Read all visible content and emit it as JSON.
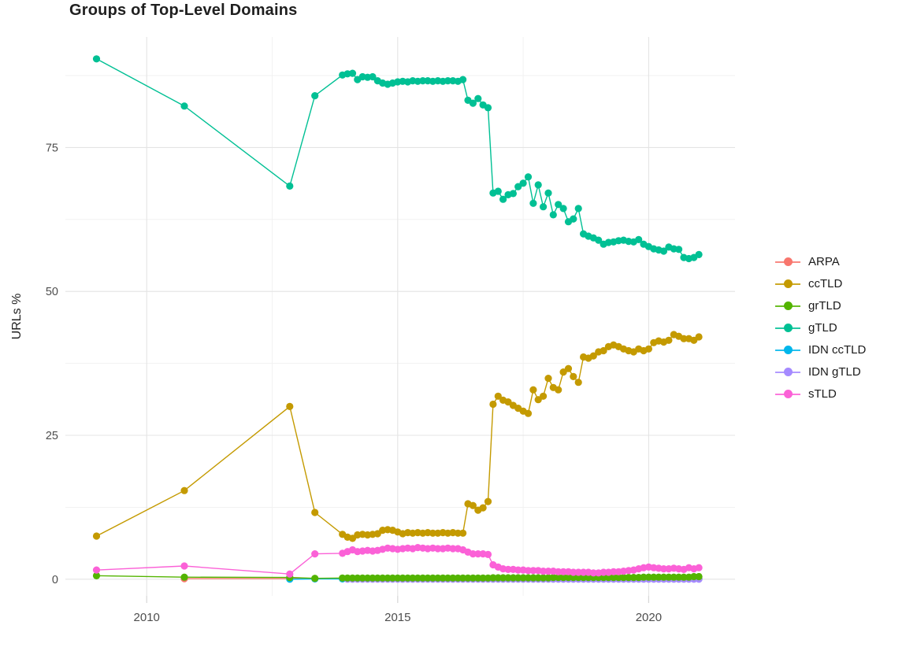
{
  "chart_data": {
    "type": "line",
    "marker": "circle",
    "title": "Groups of Top-Level Domains",
    "xlabel": "",
    "ylabel": "URLs %",
    "grid": true,
    "legend_position": "right",
    "xlim": [
      2008.38,
      2021.72
    ],
    "ylim": [
      -2.9,
      94.2
    ],
    "x_ticks": [
      2010,
      2015,
      2020
    ],
    "x_tick_labels": [
      "2010",
      "2015",
      "2020"
    ],
    "x_minor": [
      2012.5,
      2017.5
    ],
    "y_ticks": [
      0,
      25,
      50,
      75
    ],
    "y_tick_labels": [
      "0",
      "25",
      "50",
      "75"
    ],
    "y_minor": [
      12.5,
      37.5,
      62.5,
      87.5
    ],
    "series": [
      {
        "name": "ARPA",
        "color": "#F8766D",
        "points": [
          [
            2010.75,
            0.1
          ],
          [
            2012.85,
            0.1
          ],
          [
            2013.35,
            0.1
          ]
        ],
        "runs": [
          {
            "from": 2013.9,
            "to": 2021,
            "value": 0.1
          }
        ]
      },
      {
        "name": "ccTLD",
        "color": "#C49A00",
        "points": [
          [
            2009,
            7.5
          ],
          [
            2010.75,
            15.4
          ],
          [
            2012.85,
            30
          ],
          [
            2013.35,
            11.6
          ],
          [
            2013.9,
            7.8
          ],
          [
            2014,
            7.3
          ],
          [
            2014.1,
            7.1
          ],
          [
            2014.2,
            7.7
          ],
          [
            2014.3,
            7.8
          ],
          [
            2014.4,
            7.7
          ],
          [
            2014.5,
            7.8
          ],
          [
            2014.6,
            7.9
          ],
          [
            2014.7,
            8.5
          ],
          [
            2014.8,
            8.6
          ],
          [
            2014.9,
            8.5
          ],
          [
            2015,
            8.2
          ],
          [
            2015.1,
            7.9
          ],
          [
            2015.2,
            8.1
          ],
          [
            2015.3,
            8
          ],
          [
            2015.4,
            8.1
          ],
          [
            2015.5,
            8
          ],
          [
            2015.6,
            8.1
          ],
          [
            2015.7,
            8
          ],
          [
            2015.8,
            8
          ],
          [
            2015.9,
            8.1
          ],
          [
            2016,
            8
          ],
          [
            2016.1,
            8.1
          ],
          [
            2016.2,
            8
          ],
          [
            2016.3,
            8
          ],
          [
            2016.4,
            13.1
          ],
          [
            2016.5,
            12.8
          ],
          [
            2016.6,
            12
          ],
          [
            2016.7,
            12.4
          ],
          [
            2016.8,
            13.5
          ],
          [
            2016.9,
            30.4
          ],
          [
            2017,
            31.8
          ],
          [
            2017.1,
            31.1
          ],
          [
            2017.2,
            30.8
          ],
          [
            2017.3,
            30.2
          ],
          [
            2017.4,
            29.7
          ],
          [
            2017.5,
            29.2
          ],
          [
            2017.6,
            28.8
          ],
          [
            2017.7,
            32.9
          ],
          [
            2017.8,
            31.2
          ],
          [
            2017.9,
            31.8
          ],
          [
            2018,
            34.9
          ],
          [
            2018.1,
            33.3
          ],
          [
            2018.2,
            32.9
          ],
          [
            2018.3,
            36
          ],
          [
            2018.4,
            36.6
          ],
          [
            2018.5,
            35.2
          ],
          [
            2018.6,
            34.2
          ],
          [
            2018.7,
            38.6
          ],
          [
            2018.8,
            38.4
          ],
          [
            2018.9,
            38.8
          ],
          [
            2019,
            39.5
          ],
          [
            2019.1,
            39.7
          ],
          [
            2019.2,
            40.4
          ],
          [
            2019.3,
            40.7
          ],
          [
            2019.4,
            40.4
          ],
          [
            2019.5,
            40
          ],
          [
            2019.6,
            39.7
          ],
          [
            2019.7,
            39.5
          ],
          [
            2019.8,
            40
          ],
          [
            2019.9,
            39.7
          ],
          [
            2020,
            40
          ],
          [
            2020.1,
            41.1
          ],
          [
            2020.2,
            41.4
          ],
          [
            2020.3,
            41.2
          ],
          [
            2020.4,
            41.5
          ],
          [
            2020.5,
            42.5
          ],
          [
            2020.6,
            42.2
          ],
          [
            2020.7,
            41.8
          ],
          [
            2020.8,
            41.8
          ],
          [
            2020.9,
            41.5
          ],
          [
            2021,
            42.1
          ]
        ]
      },
      {
        "name": "grTLD",
        "color": "#53B400",
        "points": [
          [
            2009,
            0.6
          ],
          [
            2010.75,
            0.35
          ],
          [
            2012.85,
            0.3
          ],
          [
            2013.35,
            0.15
          ]
        ],
        "runs": [
          {
            "from": 2013.9,
            "to": 2016.8,
            "value": 0.2
          },
          {
            "from": 2016.9,
            "to": 2018,
            "value": 0.25
          },
          {
            "from": 2018.1,
            "to": 2019.8,
            "value": 0.3
          },
          {
            "from": 2019.9,
            "to": 2020.8,
            "value": 0.35
          },
          {
            "from": 2020.9,
            "to": 2021,
            "value": 0.45
          }
        ]
      },
      {
        "name": "gTLD",
        "color": "#00C094",
        "points": [
          [
            2009,
            90.4
          ],
          [
            2010.75,
            82.2
          ],
          [
            2012.85,
            68.3
          ],
          [
            2013.35,
            84
          ],
          [
            2013.9,
            87.6
          ],
          [
            2014,
            87.8
          ],
          [
            2014.1,
            87.9
          ],
          [
            2014.2,
            86.8
          ],
          [
            2014.3,
            87.3
          ],
          [
            2014.4,
            87.2
          ],
          [
            2014.5,
            87.3
          ],
          [
            2014.6,
            86.6
          ],
          [
            2014.7,
            86.2
          ],
          [
            2014.8,
            86
          ],
          [
            2014.9,
            86.2
          ],
          [
            2015,
            86.4
          ],
          [
            2015.1,
            86.5
          ],
          [
            2015.2,
            86.4
          ],
          [
            2015.3,
            86.6
          ],
          [
            2015.4,
            86.5
          ],
          [
            2015.5,
            86.6
          ],
          [
            2015.6,
            86.6
          ],
          [
            2015.7,
            86.5
          ],
          [
            2015.8,
            86.6
          ],
          [
            2015.9,
            86.5
          ],
          [
            2016,
            86.6
          ],
          [
            2016.1,
            86.6
          ],
          [
            2016.2,
            86.5
          ],
          [
            2016.3,
            86.8
          ],
          [
            2016.4,
            83.2
          ],
          [
            2016.5,
            82.7
          ],
          [
            2016.6,
            83.5
          ],
          [
            2016.7,
            82.4
          ],
          [
            2016.8,
            81.9
          ],
          [
            2016.9,
            67.1
          ],
          [
            2017,
            67.4
          ],
          [
            2017.1,
            66
          ],
          [
            2017.2,
            66.8
          ],
          [
            2017.3,
            67
          ],
          [
            2017.4,
            68.2
          ],
          [
            2017.5,
            68.8
          ],
          [
            2017.6,
            69.9
          ],
          [
            2017.7,
            65.3
          ],
          [
            2017.8,
            68.5
          ],
          [
            2017.9,
            64.7
          ],
          [
            2018,
            67.1
          ],
          [
            2018.1,
            63.3
          ],
          [
            2018.2,
            65.1
          ],
          [
            2018.3,
            64.4
          ],
          [
            2018.4,
            62.1
          ],
          [
            2018.5,
            62.6
          ],
          [
            2018.6,
            64.4
          ],
          [
            2018.7,
            60
          ],
          [
            2018.8,
            59.6
          ],
          [
            2018.9,
            59.3
          ],
          [
            2019,
            58.9
          ],
          [
            2019.1,
            58.2
          ],
          [
            2019.2,
            58.5
          ],
          [
            2019.3,
            58.6
          ],
          [
            2019.4,
            58.8
          ],
          [
            2019.5,
            58.9
          ],
          [
            2019.6,
            58.7
          ],
          [
            2019.7,
            58.6
          ],
          [
            2019.8,
            59
          ],
          [
            2019.9,
            58.2
          ],
          [
            2020,
            57.8
          ],
          [
            2020.1,
            57.4
          ],
          [
            2020.2,
            57.2
          ],
          [
            2020.3,
            57
          ],
          [
            2020.4,
            57.7
          ],
          [
            2020.5,
            57.4
          ],
          [
            2020.6,
            57.3
          ],
          [
            2020.7,
            55.9
          ],
          [
            2020.8,
            55.7
          ],
          [
            2020.9,
            55.9
          ],
          [
            2021,
            56.4
          ]
        ]
      },
      {
        "name": "IDN ccTLD",
        "color": "#00B6EB",
        "points": [
          [
            2012.85,
            0
          ],
          [
            2013.35,
            0.05
          ]
        ],
        "runs": [
          {
            "from": 2013.9,
            "to": 2021,
            "value": 0.05
          }
        ]
      },
      {
        "name": "IDN gTLD",
        "color": "#A58AFF",
        "points": [],
        "runs": [
          {
            "from": 2014,
            "to": 2021,
            "value": 0
          }
        ]
      },
      {
        "name": "sTLD",
        "color": "#FB61D7",
        "points": [
          [
            2009,
            1.6
          ],
          [
            2010.75,
            2.3
          ],
          [
            2012.85,
            0.9
          ],
          [
            2013.35,
            4.4
          ],
          [
            2013.9,
            4.5
          ],
          [
            2014,
            4.8
          ],
          [
            2014.1,
            5.1
          ],
          [
            2014.2,
            4.8
          ],
          [
            2014.3,
            4.9
          ],
          [
            2014.4,
            5
          ],
          [
            2014.5,
            4.9
          ],
          [
            2014.6,
            5
          ],
          [
            2014.7,
            5.2
          ],
          [
            2014.8,
            5.4
          ],
          [
            2014.9,
            5.3
          ],
          [
            2015,
            5.2
          ],
          [
            2015.1,
            5.3
          ],
          [
            2015.2,
            5.4
          ],
          [
            2015.3,
            5.3
          ],
          [
            2015.4,
            5.5
          ],
          [
            2015.5,
            5.4
          ],
          [
            2015.6,
            5.3
          ],
          [
            2015.7,
            5.4
          ],
          [
            2015.8,
            5.3
          ],
          [
            2015.9,
            5.3
          ],
          [
            2016,
            5.4
          ],
          [
            2016.1,
            5.3
          ],
          [
            2016.2,
            5.3
          ],
          [
            2016.3,
            5.1
          ],
          [
            2016.4,
            4.7
          ],
          [
            2016.5,
            4.4
          ],
          [
            2016.6,
            4.4
          ],
          [
            2016.7,
            4.4
          ],
          [
            2016.8,
            4.3
          ],
          [
            2016.9,
            2.5
          ],
          [
            2017,
            2.1
          ],
          [
            2017.1,
            1.8
          ],
          [
            2017.2,
            1.7
          ],
          [
            2017.3,
            1.7
          ],
          [
            2017.4,
            1.6
          ],
          [
            2017.5,
            1.6
          ],
          [
            2017.6,
            1.5
          ],
          [
            2017.7,
            1.5
          ],
          [
            2017.8,
            1.5
          ],
          [
            2017.9,
            1.4
          ],
          [
            2018,
            1.4
          ],
          [
            2018.1,
            1.4
          ],
          [
            2018.2,
            1.3
          ],
          [
            2018.3,
            1.3
          ],
          [
            2018.4,
            1.3
          ],
          [
            2018.5,
            1.2
          ],
          [
            2018.6,
            1.2
          ],
          [
            2018.7,
            1.2
          ],
          [
            2018.8,
            1.2
          ],
          [
            2018.9,
            1.1
          ],
          [
            2019,
            1.1
          ],
          [
            2019.1,
            1.2
          ],
          [
            2019.2,
            1.2
          ],
          [
            2019.3,
            1.3
          ],
          [
            2019.4,
            1.3
          ],
          [
            2019.5,
            1.4
          ],
          [
            2019.6,
            1.5
          ],
          [
            2019.7,
            1.6
          ],
          [
            2019.8,
            1.8
          ],
          [
            2019.9,
            2
          ],
          [
            2020,
            2.1
          ],
          [
            2020.1,
            2
          ],
          [
            2020.2,
            1.9
          ],
          [
            2020.3,
            1.8
          ],
          [
            2020.4,
            1.8
          ],
          [
            2020.5,
            1.9
          ],
          [
            2020.6,
            1.8
          ],
          [
            2020.7,
            1.7
          ],
          [
            2020.8,
            2
          ],
          [
            2020.9,
            1.8
          ],
          [
            2021,
            2
          ]
        ]
      }
    ]
  }
}
